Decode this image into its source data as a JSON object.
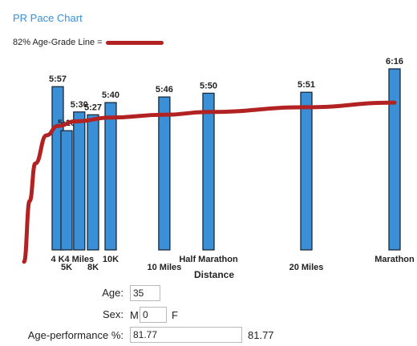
{
  "page": {
    "title": "PR Pace Chart",
    "legend_label": "82% Age-Grade Line ="
  },
  "chart_data": {
    "type": "bar",
    "xlabel": "Distance",
    "ylabel": "",
    "categories": [
      {
        "name": "4 K",
        "km": 4.0,
        "pace": "5:57"
      },
      {
        "name": "5K",
        "km": 5.0,
        "pace": "5:10"
      },
      {
        "name": "4 Miles",
        "km": 6.437,
        "pace": "5:30"
      },
      {
        "name": "8K",
        "km": 8.0,
        "pace": "5:27"
      },
      {
        "name": "10K",
        "km": 10.0,
        "pace": "5:40"
      },
      {
        "name": "10 Miles",
        "km": 16.09,
        "pace": "5:46"
      },
      {
        "name": "Half Marathon",
        "km": 21.1,
        "pace": "5:50"
      },
      {
        "name": "20 Miles",
        "km": 32.19,
        "pace": "5:51"
      },
      {
        "name": "Marathon",
        "km": 42.195,
        "pace": "6:16"
      }
    ],
    "bar_color": "#3a8fd6",
    "line_color": "#b22222",
    "age_grade_line": [
      {
        "km": 1.0,
        "pace": "2:50"
      },
      {
        "km": 1.5,
        "pace": "3:55"
      },
      {
        "km": 2.0,
        "pace": "4:35"
      },
      {
        "km": 3.0,
        "pace": "5:05"
      },
      {
        "km": 4.0,
        "pace": "5:15"
      },
      {
        "km": 6.0,
        "pace": "5:20"
      },
      {
        "km": 10.0,
        "pace": "5:24"
      },
      {
        "km": 16.09,
        "pace": "5:27"
      },
      {
        "km": 21.1,
        "pace": "5:30"
      },
      {
        "km": 32.19,
        "pace": "5:35"
      },
      {
        "km": 42.195,
        "pace": "5:40"
      }
    ]
  },
  "form": {
    "age_label": "Age:",
    "age_value": "35",
    "sex_label": "Sex:",
    "sex_m": "M",
    "sex_value": "0",
    "sex_f": "F",
    "perf_label": "Age-performance %:",
    "perf_value": "81.77",
    "perf_display": "81.77"
  }
}
